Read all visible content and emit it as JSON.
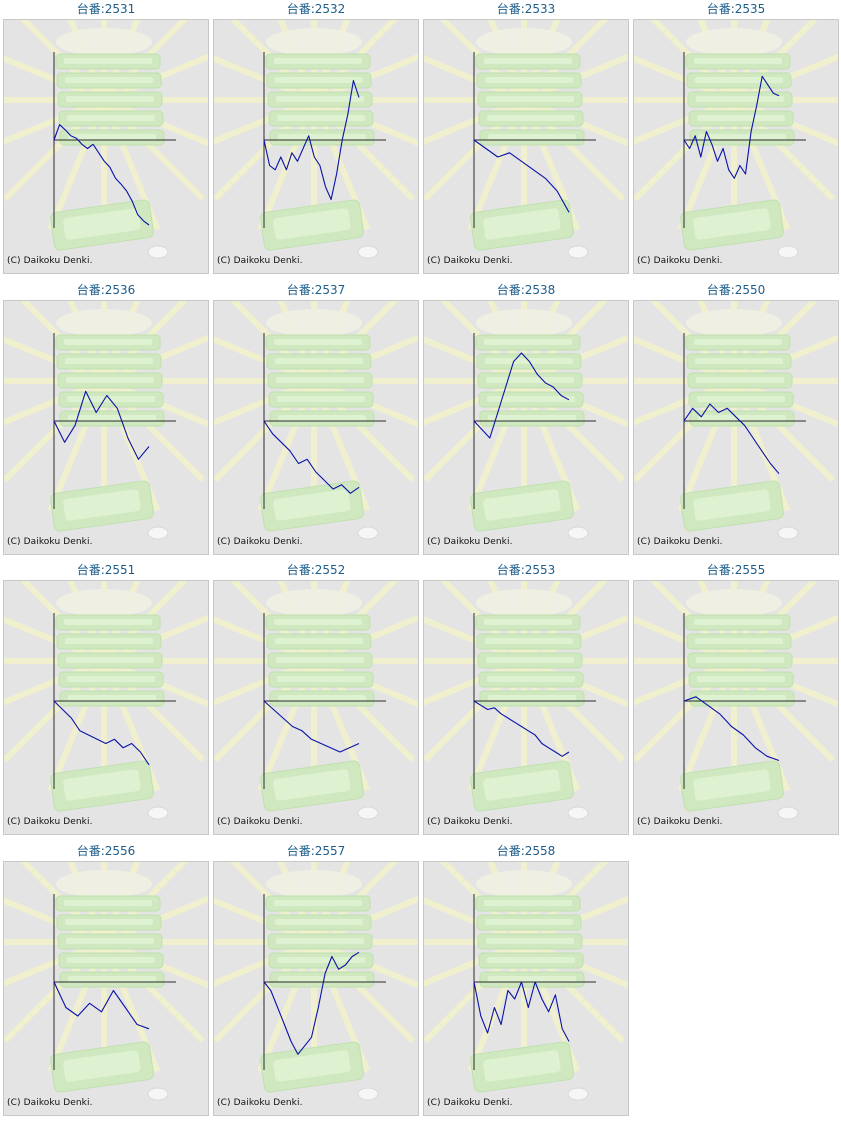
{
  "title_prefix": "台番:",
  "copyright": "(C) Daikoku Denki.",
  "colors": {
    "line": "#0a12a8",
    "axis": "#2a2a2a",
    "panel": "#e4e4e4",
    "title": "#1d5d8c"
  },
  "chart_data": [
    {
      "type": "line",
      "title": "台番:2531",
      "ylim": [
        -1,
        1
      ],
      "values": [
        0,
        0.18,
        0.12,
        0.05,
        0.02,
        -0.05,
        -0.1,
        -0.05,
        -0.15,
        -0.25,
        -0.32,
        -0.45,
        -0.52,
        -0.6,
        -0.72,
        -0.88,
        -0.95,
        -1.0
      ]
    },
    {
      "type": "line",
      "title": "台番:2532",
      "ylim": [
        -1,
        1
      ],
      "values": [
        0,
        -0.3,
        -0.35,
        -0.2,
        -0.35,
        -0.15,
        -0.25,
        -0.1,
        0.05,
        -0.2,
        -0.3,
        -0.55,
        -0.7,
        -0.4,
        0.0,
        0.3,
        0.7,
        0.5
      ]
    },
    {
      "type": "line",
      "title": "台番:2533",
      "ylim": [
        -1,
        1
      ],
      "values": [
        0,
        -0.1,
        -0.2,
        -0.15,
        -0.25,
        -0.35,
        -0.45,
        -0.6,
        -0.85
      ]
    },
    {
      "type": "line",
      "title": "台番:2535",
      "ylim": [
        -1,
        1
      ],
      "values": [
        0,
        -0.1,
        0.05,
        -0.2,
        0.1,
        -0.05,
        -0.25,
        -0.1,
        -0.35,
        -0.45,
        -0.3,
        -0.4,
        0.1,
        0.4,
        0.75,
        0.65,
        0.55,
        0.52
      ]
    },
    {
      "type": "line",
      "title": "台番:2536",
      "ylim": [
        -1,
        1
      ],
      "values": [
        0,
        -0.25,
        -0.05,
        0.35,
        0.1,
        0.3,
        0.15,
        -0.2,
        -0.45,
        -0.3
      ]
    },
    {
      "type": "line",
      "title": "台番:2537",
      "ylim": [
        -1,
        1
      ],
      "values": [
        0,
        -0.15,
        -0.25,
        -0.35,
        -0.5,
        -0.45,
        -0.6,
        -0.7,
        -0.8,
        -0.75,
        -0.85,
        -0.78
      ]
    },
    {
      "type": "line",
      "title": "台番:2538",
      "ylim": [
        -1,
        1
      ],
      "values": [
        0,
        -0.1,
        -0.2,
        0.1,
        0.4,
        0.7,
        0.8,
        0.7,
        0.55,
        0.45,
        0.4,
        0.3,
        0.25
      ]
    },
    {
      "type": "line",
      "title": "台番:2550",
      "ylim": [
        -1,
        1
      ],
      "values": [
        0,
        0.15,
        0.05,
        0.2,
        0.1,
        0.15,
        0.05,
        -0.05,
        -0.2,
        -0.35,
        -0.5,
        -0.62
      ]
    },
    {
      "type": "line",
      "title": "台番:2551",
      "ylim": [
        -1,
        1
      ],
      "values": [
        0,
        -0.1,
        -0.2,
        -0.35,
        -0.4,
        -0.45,
        -0.5,
        -0.45,
        -0.55,
        -0.5,
        -0.6,
        -0.75
      ]
    },
    {
      "type": "line",
      "title": "台番:2552",
      "ylim": [
        -1,
        1
      ],
      "values": [
        0,
        -0.1,
        -0.2,
        -0.3,
        -0.35,
        -0.45,
        -0.5,
        -0.55,
        -0.6,
        -0.55,
        -0.5
      ]
    },
    {
      "type": "line",
      "title": "台番:2553",
      "ylim": [
        -1,
        1
      ],
      "values": [
        0,
        -0.05,
        -0.1,
        -0.08,
        -0.15,
        -0.2,
        -0.25,
        -0.3,
        -0.35,
        -0.4,
        -0.5,
        -0.55,
        -0.6,
        -0.65,
        -0.6
      ]
    },
    {
      "type": "line",
      "title": "台番:2555",
      "ylim": [
        -1,
        1
      ],
      "values": [
        0,
        0.05,
        -0.05,
        -0.15,
        -0.3,
        -0.4,
        -0.55,
        -0.65,
        -0.7
      ]
    },
    {
      "type": "line",
      "title": "台番:2556",
      "ylim": [
        -1,
        1
      ],
      "values": [
        0,
        -0.3,
        -0.4,
        -0.25,
        -0.35,
        -0.1,
        -0.3,
        -0.5,
        -0.55
      ]
    },
    {
      "type": "line",
      "title": "台番:2557",
      "ylim": [
        -1,
        1
      ],
      "values": [
        0,
        -0.1,
        -0.3,
        -0.5,
        -0.7,
        -0.85,
        -0.75,
        -0.65,
        -0.3,
        0.1,
        0.3,
        0.15,
        0.2,
        0.3,
        0.35
      ]
    },
    {
      "type": "line",
      "title": "台番:2558",
      "ylim": [
        -1,
        1
      ],
      "values": [
        0,
        -0.4,
        -0.6,
        -0.3,
        -0.5,
        -0.1,
        -0.2,
        0.0,
        -0.3,
        0.0,
        -0.2,
        -0.35,
        -0.15,
        -0.55,
        -0.7
      ]
    }
  ]
}
